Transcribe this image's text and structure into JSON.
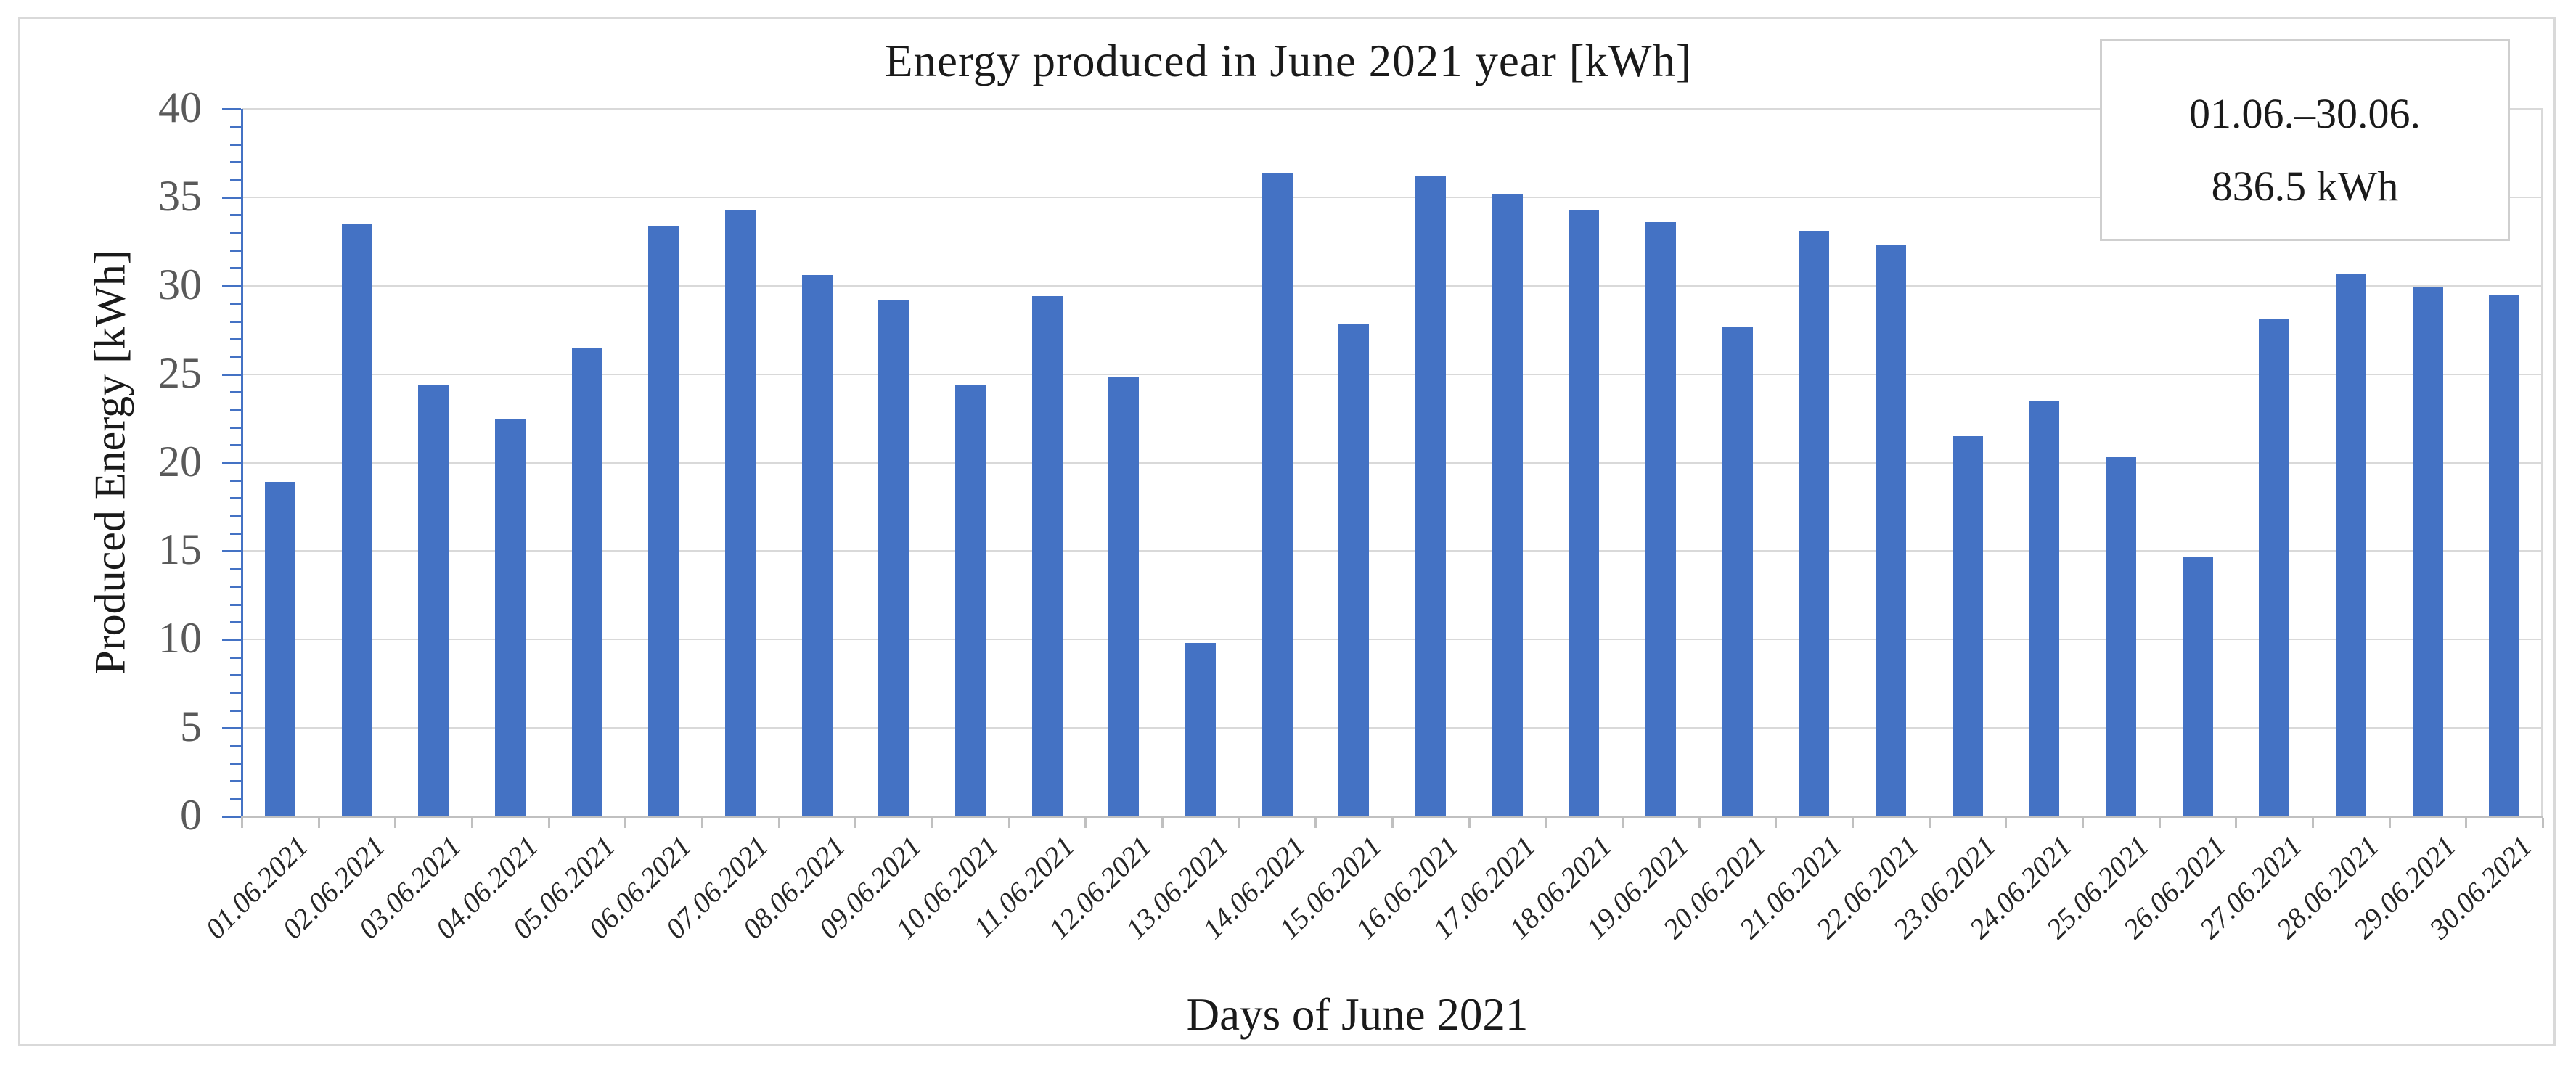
{
  "chart_data": {
    "type": "bar",
    "title": "Energy produced in June 2021 year [kWh]",
    "xlabel": "Days of June 2021",
    "ylabel": "Produced Energy [kWh]",
    "categories": [
      "01.06.2021",
      "02.06.2021",
      "03.06.2021",
      "04.06.2021",
      "05.06.2021",
      "06.06.2021",
      "07.06.2021",
      "08.06.2021",
      "09.06.2021",
      "10.06.2021",
      "11.06.2021",
      "12.06.2021",
      "13.06.2021",
      "14.06.2021",
      "15.06.2021",
      "16.06.2021",
      "17.06.2021",
      "18.06.2021",
      "19.06.2021",
      "20.06.2021",
      "21.06.2021",
      "22.06.2021",
      "23.06.2021",
      "24.06.2021",
      "25.06.2021",
      "26.06.2021",
      "27.06.2021",
      "28.06.2021",
      "29.06.2021",
      "30.06.2021"
    ],
    "values": [
      18.9,
      33.5,
      24.4,
      22.5,
      26.5,
      33.4,
      34.3,
      30.6,
      29.2,
      24.4,
      29.4,
      24.8,
      9.8,
      36.4,
      27.8,
      36.2,
      35.2,
      34.3,
      33.6,
      27.7,
      33.1,
      32.3,
      21.5,
      23.5,
      20.3,
      14.7,
      28.1,
      30.7,
      29.9,
      29.5
    ],
    "ylim": [
      0,
      40
    ],
    "y_major_ticks": [
      0,
      5,
      10,
      15,
      20,
      25,
      30,
      35,
      40
    ],
    "y_minor_unit": 1,
    "grid": "horizontal-major",
    "legend_position": "none",
    "total_shown": 836.5
  },
  "annotation": {
    "line1": "01.06.–30.06.",
    "line2": "836.5 kWh"
  },
  "colors": {
    "bar": "#4472c4",
    "y_axis": "#4472c4",
    "x_axis": "#c0c0c0",
    "gridline": "#d9d9d9",
    "figure_border": "#d9d9d9",
    "y_tick_label": "#595959",
    "x_tick_label": "#262626"
  }
}
